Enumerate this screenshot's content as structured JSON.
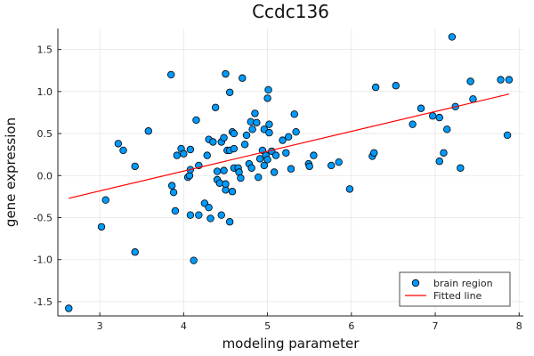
{
  "chart_data": {
    "type": "scatter",
    "title": "Ccdc136",
    "xlabel": "modeling parameter",
    "ylabel": "gene expression",
    "xlim": [
      2.5,
      8.05
    ],
    "ylim": [
      -1.67,
      1.75
    ],
    "xticks": [
      3,
      4,
      5,
      6,
      7,
      8
    ],
    "xtick_labels": [
      "3",
      "4",
      "5",
      "6",
      "7",
      "8"
    ],
    "yticks": [
      -1.5,
      -1.0,
      -0.5,
      0.0,
      0.5,
      1.0,
      1.5
    ],
    "ytick_labels": [
      "-1.5",
      "-1.0",
      "-0.5",
      "0.0",
      "0.5",
      "1.0",
      "1.5"
    ],
    "grid": true,
    "legend_position": "bottom-right",
    "series": [
      {
        "name": "brain region",
        "kind": "points",
        "color": "#009AFA",
        "points": [
          [
            2.63,
            -1.58
          ],
          [
            3.02,
            -0.61
          ],
          [
            3.07,
            -0.29
          ],
          [
            3.22,
            0.38
          ],
          [
            3.28,
            0.3
          ],
          [
            3.42,
            0.11
          ],
          [
            3.42,
            -0.91
          ],
          [
            3.58,
            0.53
          ],
          [
            3.85,
            1.2
          ],
          [
            3.86,
            -0.12
          ],
          [
            3.88,
            -0.2
          ],
          [
            3.9,
            -0.42
          ],
          [
            3.92,
            0.24
          ],
          [
            3.97,
            0.32
          ],
          [
            4.0,
            0.26
          ],
          [
            4.05,
            -0.02
          ],
          [
            4.07,
            0.0
          ],
          [
            4.08,
            0.07
          ],
          [
            4.08,
            0.31
          ],
          [
            4.08,
            -0.47
          ],
          [
            4.12,
            -1.01
          ],
          [
            4.15,
            0.66
          ],
          [
            4.18,
            0.12
          ],
          [
            4.18,
            -0.47
          ],
          [
            4.25,
            -0.33
          ],
          [
            4.28,
            0.24
          ],
          [
            4.3,
            0.43
          ],
          [
            4.3,
            -0.38
          ],
          [
            4.32,
            -0.51
          ],
          [
            4.35,
            0.4
          ],
          [
            4.38,
            0.81
          ],
          [
            4.4,
            0.05
          ],
          [
            4.4,
            -0.05
          ],
          [
            4.43,
            -0.09
          ],
          [
            4.45,
            0.4
          ],
          [
            4.45,
            -0.47
          ],
          [
            4.48,
            0.45
          ],
          [
            4.48,
            0.06
          ],
          [
            4.5,
            1.21
          ],
          [
            4.5,
            -0.17
          ],
          [
            4.5,
            -0.1
          ],
          [
            4.52,
            0.3
          ],
          [
            4.55,
            0.99
          ],
          [
            4.55,
            0.3
          ],
          [
            4.55,
            -0.55
          ],
          [
            4.58,
            0.52
          ],
          [
            4.58,
            -0.19
          ],
          [
            4.6,
            0.5
          ],
          [
            4.6,
            0.32
          ],
          [
            4.6,
            0.09
          ],
          [
            4.65,
            0.09
          ],
          [
            4.66,
            0.04
          ],
          [
            4.68,
            -0.03
          ],
          [
            4.7,
            1.16
          ],
          [
            4.73,
            0.37
          ],
          [
            4.75,
            0.48
          ],
          [
            4.78,
            0.14
          ],
          [
            4.8,
            0.64
          ],
          [
            4.81,
            0.09
          ],
          [
            4.82,
            0.55
          ],
          [
            4.85,
            0.74
          ],
          [
            4.87,
            0.63
          ],
          [
            4.89,
            -0.02
          ],
          [
            4.91,
            0.2
          ],
          [
            4.94,
            0.3
          ],
          [
            4.96,
            0.55
          ],
          [
            4.96,
            0.12
          ],
          [
            4.98,
            0.24
          ],
          [
            5.0,
            0.92
          ],
          [
            5.0,
            0.19
          ],
          [
            5.01,
            1.02
          ],
          [
            5.02,
            0.61
          ],
          [
            5.02,
            0.51
          ],
          [
            5.05,
            0.29
          ],
          [
            5.08,
            0.04
          ],
          [
            5.1,
            0.24
          ],
          [
            5.18,
            0.42
          ],
          [
            5.22,
            0.27
          ],
          [
            5.25,
            0.46
          ],
          [
            5.28,
            0.08
          ],
          [
            5.32,
            0.73
          ],
          [
            5.34,
            0.52
          ],
          [
            5.49,
            0.14
          ],
          [
            5.5,
            0.11
          ],
          [
            5.55,
            0.24
          ],
          [
            5.76,
            0.12
          ],
          [
            5.85,
            0.16
          ],
          [
            5.98,
            -0.16
          ],
          [
            6.25,
            0.23
          ],
          [
            6.27,
            0.27
          ],
          [
            6.29,
            1.05
          ],
          [
            6.53,
            1.07
          ],
          [
            6.73,
            0.61
          ],
          [
            6.83,
            0.8
          ],
          [
            6.97,
            0.71
          ],
          [
            7.05,
            0.69
          ],
          [
            7.05,
            0.17
          ],
          [
            7.1,
            0.27
          ],
          [
            7.14,
            0.55
          ],
          [
            7.2,
            1.65
          ],
          [
            7.24,
            0.82
          ],
          [
            7.3,
            0.09
          ],
          [
            7.42,
            1.12
          ],
          [
            7.45,
            0.91
          ],
          [
            7.78,
            1.14
          ],
          [
            7.86,
            0.48
          ],
          [
            7.88,
            1.14
          ]
        ]
      },
      {
        "name": "Fitted line",
        "kind": "line",
        "color": "#FF0000",
        "x": [
          2.63,
          7.88
        ],
        "y": [
          -0.27,
          0.97
        ]
      }
    ]
  }
}
